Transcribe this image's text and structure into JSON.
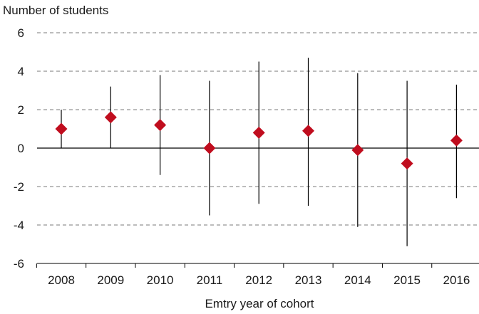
{
  "chart_data": {
    "type": "scatter",
    "title": "",
    "ylabel": "Number of students",
    "xlabel": "Emtry year of cohort",
    "ylim": [
      -6,
      6
    ],
    "yticks": [
      6,
      4,
      2,
      0,
      -2,
      -4,
      -6
    ],
    "ytick_labels": [
      "6",
      "4",
      "2",
      "0",
      "-2",
      "-4",
      "-6"
    ],
    "grid": true,
    "marker_color": "#c00d1e",
    "categories": [
      "2008",
      "2009",
      "2010",
      "2011",
      "2012",
      "2013",
      "2014",
      "2015",
      "2016"
    ],
    "values": [
      1.0,
      1.6,
      1.2,
      0.0,
      0.8,
      0.9,
      -0.1,
      -0.8,
      0.4
    ],
    "error_low": [
      0.0,
      0.0,
      -1.4,
      -3.5,
      -2.9,
      -3.0,
      -4.1,
      -5.1,
      -2.6
    ],
    "error_high": [
      2.0,
      3.2,
      3.8,
      3.5,
      4.5,
      4.7,
      3.9,
      3.5,
      3.3
    ]
  }
}
